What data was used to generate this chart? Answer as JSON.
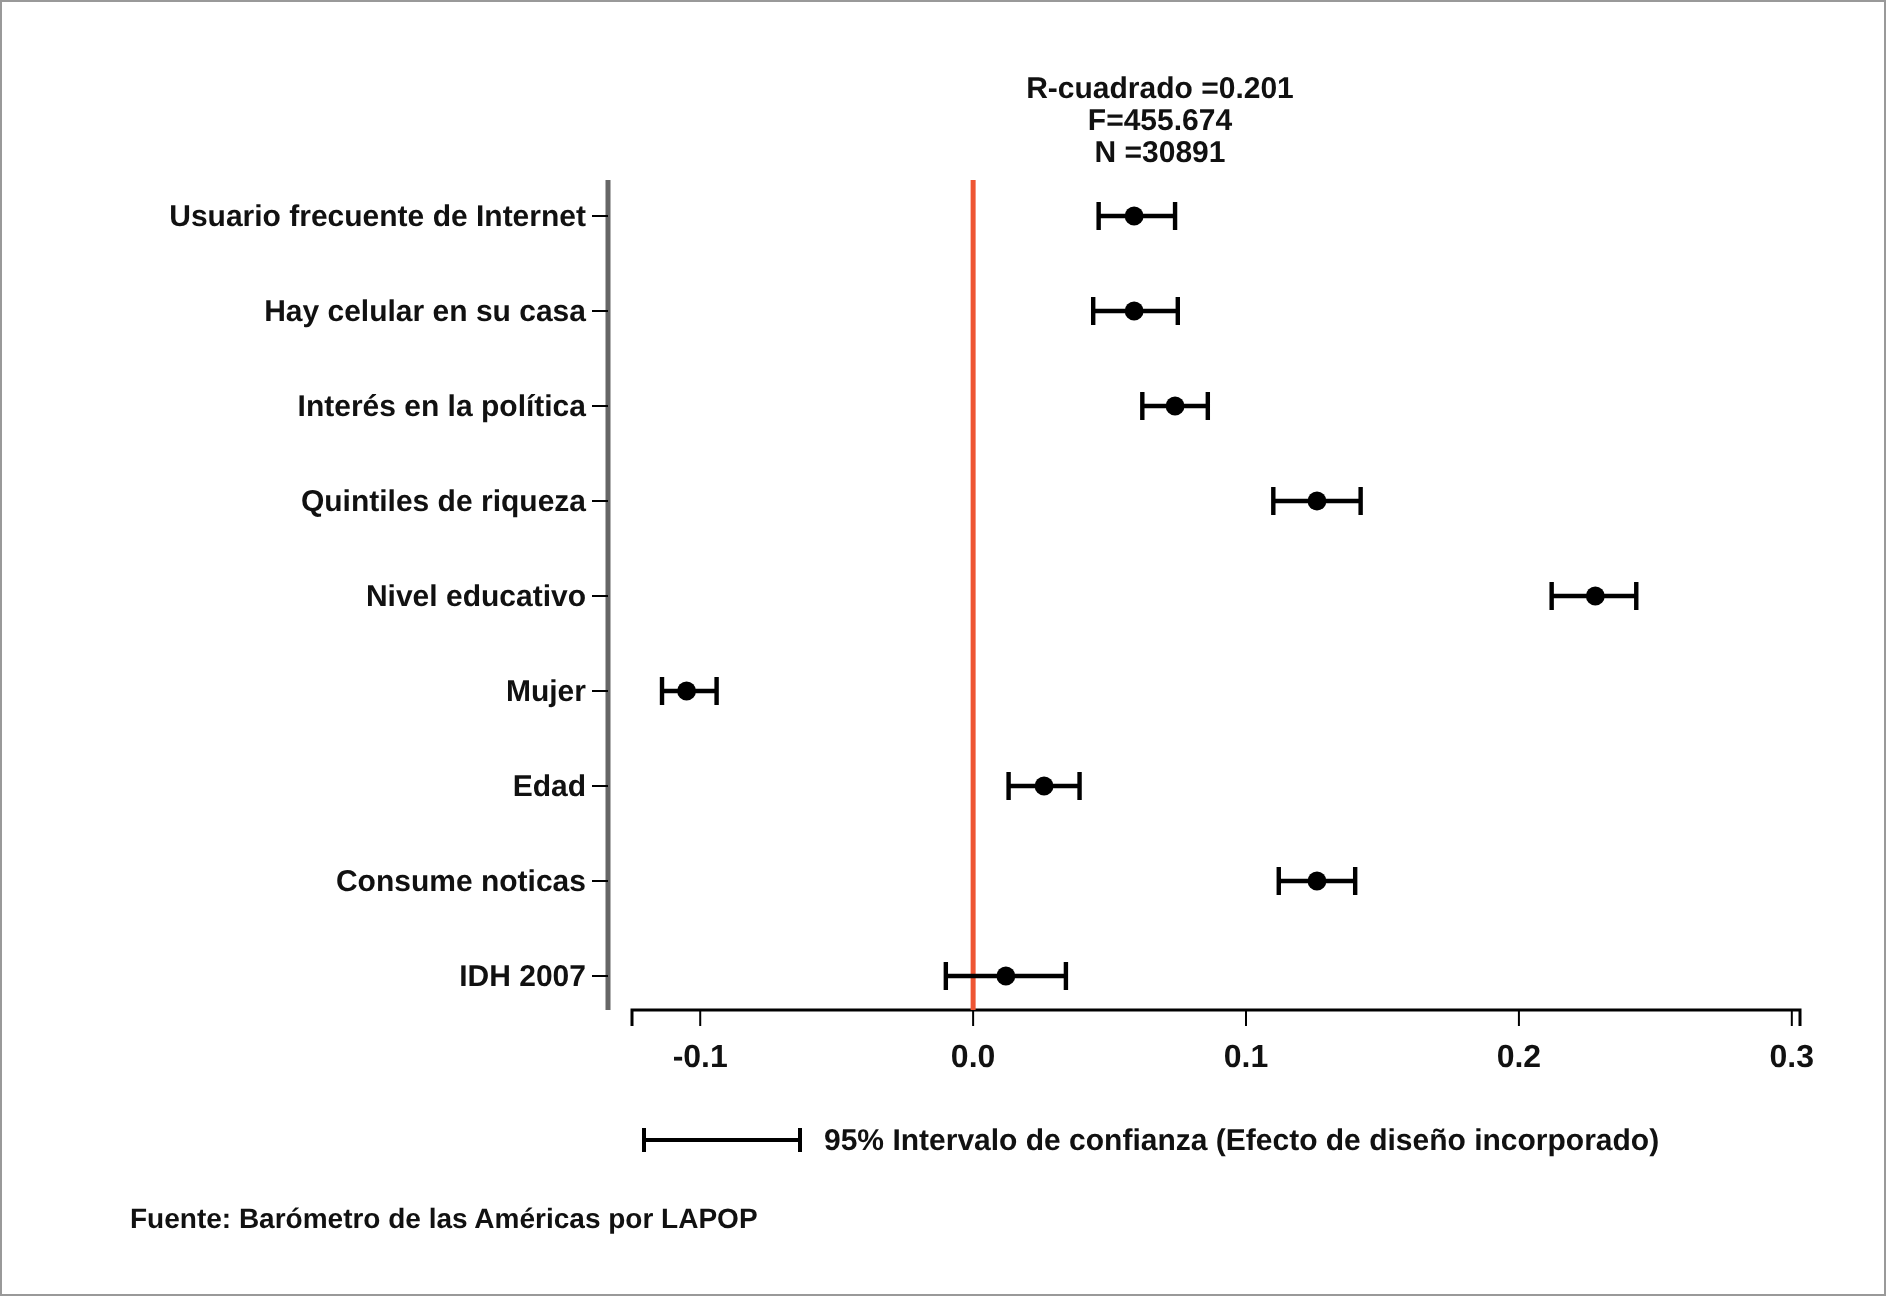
{
  "chart_data": {
    "type": "scatter",
    "orientation": "horizontal",
    "categories": [
      "Usuario frecuente de Internet",
      "Hay celular en su casa",
      "Interés en la política",
      "Quintiles de riqueza",
      "Nivel educativo",
      "Mujer",
      "Edad",
      "Consume noticas",
      "IDH 2007"
    ],
    "series": [
      {
        "name": "95% Intervalo de confianza (Efecto de diseño incorporado)",
        "color": "#000000",
        "values": [
          0.059,
          0.059,
          0.074,
          0.126,
          0.228,
          -0.105,
          0.026,
          0.126,
          0.012
        ],
        "errors": [
          [
            0.046,
            0.074
          ],
          [
            0.044,
            0.075
          ],
          [
            0.062,
            0.086
          ],
          [
            0.11,
            0.142
          ],
          [
            0.212,
            0.243
          ],
          [
            -0.114,
            -0.094
          ],
          [
            0.013,
            0.039
          ],
          [
            0.112,
            0.14
          ],
          [
            -0.01,
            0.034
          ]
        ]
      }
    ],
    "xlim": [
      -0.125,
      0.303
    ],
    "xticks": [
      -0.1,
      {
        "value": 0,
        "label": "0.0"
      },
      0.1,
      0.2,
      0.3
    ],
    "ref_lines": [
      {
        "axis": "x",
        "value": 0,
        "color": "#ee5533"
      }
    ],
    "marker": "circle",
    "legend": "bottom",
    "grid": false,
    "annotations": [
      "R-cuadrado =0.201",
      "F=455.674",
      "N =30891",
      "Fuente: Barómetro de las Américas por LAPOP"
    ]
  }
}
